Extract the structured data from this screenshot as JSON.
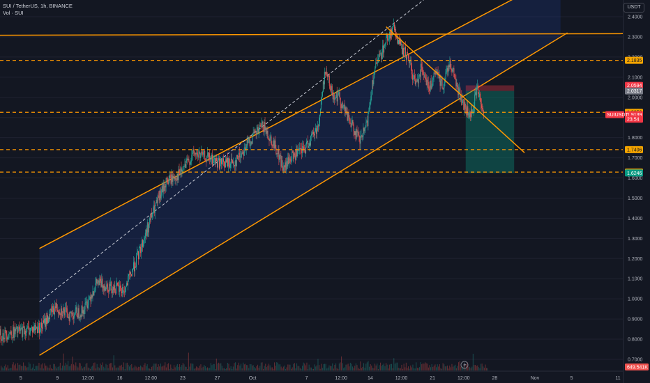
{
  "header": {
    "symbol_line": "SUI / TetherUS, 1h, BINANCE",
    "vol_line": "Vol · SUI",
    "currency": "USDT"
  },
  "axis": {
    "price_ticks": [
      "2.4000",
      "2.3000",
      "2.2000",
      "2.1000",
      "2.0000",
      "1.9000",
      "1.8000",
      "1.7000",
      "1.6000",
      "1.5000",
      "1.4000",
      "1.3000",
      "1.2000",
      "1.1000",
      "1.0000",
      "0.9000",
      "0.8000",
      "0.7000"
    ],
    "price_tick_values": [
      2.4,
      2.3,
      2.2,
      2.1,
      2.0,
      1.9,
      1.8,
      1.7,
      1.6,
      1.5,
      1.4,
      1.3,
      1.2,
      1.1,
      1.0,
      0.9,
      0.8,
      0.7
    ],
    "time_ticks": [
      "5",
      "9",
      "12:00",
      "16",
      "12:00",
      "23",
      "27",
      "Oct",
      "7",
      "12:00",
      "14",
      "12:00",
      "21",
      "12:00",
      "28",
      "Nov",
      "5",
      "11"
    ]
  },
  "price_labels": [
    {
      "text": "2.1835",
      "value": 2.1835,
      "bg": "#f7a600",
      "fg": "#131722"
    },
    {
      "text": "2.0594",
      "value": 2.0594,
      "bg": "#f23645",
      "fg": "#ffffff"
    },
    {
      "text": "2.0317",
      "value": 2.0317,
      "bg": "#787b86",
      "fg": "#ffffff"
    },
    {
      "text": "1.9258",
      "value": 1.9258,
      "bg": "#f7a600",
      "fg": "#131722"
    },
    {
      "text": "1.9139",
      "value": 1.9139,
      "bg": "#f23645",
      "fg": "#ffffff"
    },
    {
      "text": "23:54",
      "value": 1.8915,
      "bg": "#f23645",
      "fg": "#ffffff"
    },
    {
      "text": "1.7406",
      "value": 1.7406,
      "bg": "#f7a600",
      "fg": "#131722"
    },
    {
      "text": "1.6291",
      "value": 1.6291,
      "bg": "#f7a600",
      "fg": "#131722"
    },
    {
      "text": "1.6246",
      "value": 1.6246,
      "bg": "#089981",
      "fg": "#ffffff"
    }
  ],
  "symbol_tag": "SUIUSDT",
  "volume_label": "649.541K",
  "colors": {
    "background": "#131722",
    "up": "#26a69a",
    "down": "#ef5350",
    "drawing": "#ff9800",
    "channel_fill": "#1e3a8a",
    "target_zone": "#089981",
    "stop_zone": "#f23645",
    "grid": "#1f2230"
  },
  "drawings": {
    "horizontal_levels": [
      2.1835,
      1.9258,
      1.7406,
      1.6291
    ],
    "position": {
      "entry": 2.0317,
      "stop": 2.0594,
      "target": 1.6246
    }
  },
  "chart_data": {
    "type": "candlestick",
    "title": "SUI / TetherUS, 1h, BINANCE",
    "ylim": [
      0.68,
      2.44
    ],
    "x_ticks": [
      "5",
      "9",
      "12:00",
      "16",
      "12:00",
      "23",
      "27",
      "Oct",
      "7",
      "12:00",
      "14",
      "12:00",
      "21",
      "12:00",
      "28",
      "Nov",
      "5",
      "11"
    ],
    "last_price": 1.9139,
    "price_path": [
      {
        "t": 0,
        "p": 0.82
      },
      {
        "t": 3,
        "p": 0.84
      },
      {
        "t": 6,
        "p": 0.86
      },
      {
        "t": 8,
        "p": 0.96
      },
      {
        "t": 10,
        "p": 0.92
      },
      {
        "t": 12,
        "p": 0.94
      },
      {
        "t": 14,
        "p": 1.08
      },
      {
        "t": 16,
        "p": 1.06
      },
      {
        "t": 18,
        "p": 1.04
      },
      {
        "t": 20,
        "p": 1.22
      },
      {
        "t": 22,
        "p": 1.42
      },
      {
        "t": 24,
        "p": 1.58
      },
      {
        "t": 26,
        "p": 1.62
      },
      {
        "t": 28,
        "p": 1.72
      },
      {
        "t": 30,
        "p": 1.7
      },
      {
        "t": 32,
        "p": 1.67
      },
      {
        "t": 34,
        "p": 1.68
      },
      {
        "t": 36,
        "p": 1.78
      },
      {
        "t": 38,
        "p": 1.86
      },
      {
        "t": 40,
        "p": 1.74
      },
      {
        "t": 41,
        "p": 1.64
      },
      {
        "t": 42,
        "p": 1.7
      },
      {
        "t": 44,
        "p": 1.74
      },
      {
        "t": 46,
        "p": 1.86
      },
      {
        "t": 47,
        "p": 2.14
      },
      {
        "t": 48,
        "p": 2.02
      },
      {
        "t": 49,
        "p": 2.0
      },
      {
        "t": 50,
        "p": 1.92
      },
      {
        "t": 52,
        "p": 1.78
      },
      {
        "t": 53,
        "p": 1.86
      },
      {
        "t": 54,
        "p": 2.12
      },
      {
        "t": 56,
        "p": 2.3
      },
      {
        "t": 57,
        "p": 2.34
      },
      {
        "t": 58,
        "p": 2.24
      },
      {
        "t": 59,
        "p": 2.2
      },
      {
        "t": 60,
        "p": 2.06
      },
      {
        "t": 61,
        "p": 2.16
      },
      {
        "t": 62,
        "p": 2.04
      },
      {
        "t": 63,
        "p": 2.12
      },
      {
        "t": 64,
        "p": 2.06
      },
      {
        "t": 65,
        "p": 2.18
      },
      {
        "t": 66,
        "p": 2.06
      },
      {
        "t": 67,
        "p": 1.96
      },
      {
        "t": 68,
        "p": 1.9
      },
      {
        "t": 69,
        "p": 2.05
      },
      {
        "t": 70,
        "p": 1.91
      }
    ],
    "series": [
      {
        "name": "Vol · SUI"
      }
    ]
  }
}
